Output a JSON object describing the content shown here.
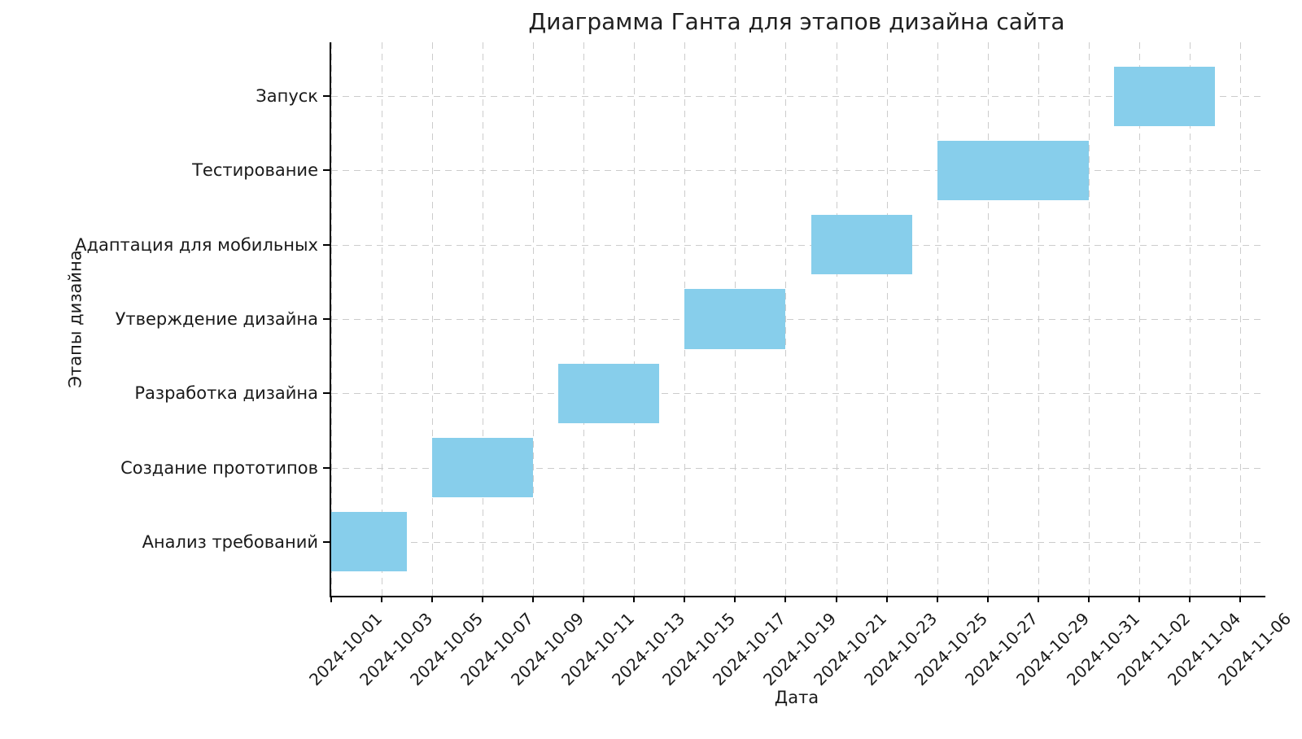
{
  "chart_data": {
    "type": "bar",
    "subtype": "gantt-horizontal",
    "title": "Диаграмма Ганта для этапов дизайна сайта",
    "xlabel": "Дата",
    "ylabel": "Этапы дизайна",
    "bar_color": "#87CEEB",
    "grid_color": "#cccccc",
    "spine_color": "#000000",
    "text_color": "#1a1a1a",
    "grid_style": "dashed",
    "bar_height_frac": 0.8,
    "legend": null,
    "x_axis": {
      "xlim": [
        "2024-10-01",
        "2024-11-07"
      ],
      "tick_interval_days": 2,
      "tick_rotation_deg": 45,
      "ticks": [
        "2024-10-01",
        "2024-10-03",
        "2024-10-05",
        "2024-10-07",
        "2024-10-09",
        "2024-10-11",
        "2024-10-13",
        "2024-10-15",
        "2024-10-17",
        "2024-10-19",
        "2024-10-21",
        "2024-10-23",
        "2024-10-25",
        "2024-10-27",
        "2024-10-29",
        "2024-10-31",
        "2024-11-02",
        "2024-11-04",
        "2024-11-06"
      ]
    },
    "y_axis": {
      "order": "bottom-to-top",
      "categories": [
        "Анализ требований",
        "Создание прототипов",
        "Разработка дизайна",
        "Утверждение дизайна",
        "Адаптация для мобильных",
        "Тестирование",
        "Запуск"
      ]
    },
    "tasks": [
      {
        "label": "Анализ требований",
        "start": "2024-10-01",
        "end": "2024-10-04",
        "duration_days": 3
      },
      {
        "label": "Создание прототипов",
        "start": "2024-10-05",
        "end": "2024-10-09",
        "duration_days": 4
      },
      {
        "label": "Разработка дизайна",
        "start": "2024-10-10",
        "end": "2024-10-14",
        "duration_days": 4
      },
      {
        "label": "Утверждение дизайна",
        "start": "2024-10-15",
        "end": "2024-10-19",
        "duration_days": 4
      },
      {
        "label": "Адаптация для мобильных",
        "start": "2024-10-20",
        "end": "2024-10-24",
        "duration_days": 4
      },
      {
        "label": "Тестирование",
        "start": "2024-10-25",
        "end": "2024-10-31",
        "duration_days": 6
      },
      {
        "label": "Запуск",
        "start": "2024-11-01",
        "end": "2024-11-05",
        "duration_days": 4
      }
    ]
  }
}
